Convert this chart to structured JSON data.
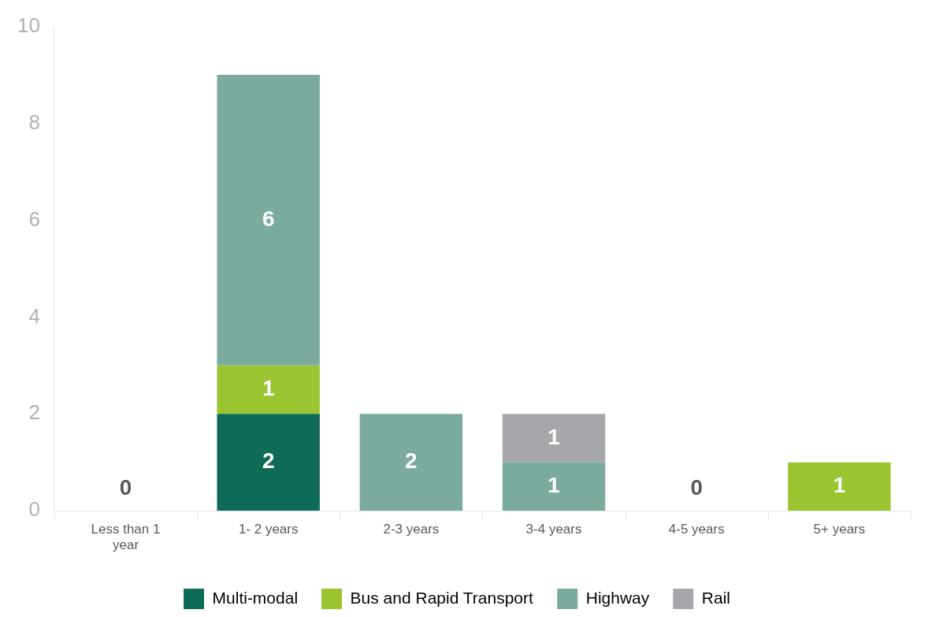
{
  "chart_data": {
    "type": "bar",
    "stacked": true,
    "categories": [
      "Less than 1 year",
      "1- 2 years",
      "2-3 years",
      "3-4 years",
      "4-5 years",
      "5+ years"
    ],
    "series": [
      {
        "name": "Multi-modal",
        "color": "#0e6b55",
        "values": [
          null,
          2,
          null,
          null,
          null,
          null
        ]
      },
      {
        "name": "Bus and Rapid Transport",
        "color": "#9ac531",
        "values": [
          null,
          1,
          null,
          null,
          null,
          1
        ]
      },
      {
        "name": "Highway",
        "color": "#7aab9e",
        "values": [
          null,
          6,
          2,
          1,
          null,
          null
        ]
      },
      {
        "name": "Rail",
        "color": "#a6a7aa",
        "values": [
          null,
          null,
          null,
          1,
          null,
          null
        ]
      }
    ],
    "ylim": [
      0,
      10
    ],
    "yticks": [
      0,
      2,
      4,
      6,
      8,
      10
    ],
    "grid": false,
    "legend": "bottom",
    "data_labels": true,
    "totals": [
      "0",
      null,
      null,
      null,
      "0",
      null
    ]
  }
}
